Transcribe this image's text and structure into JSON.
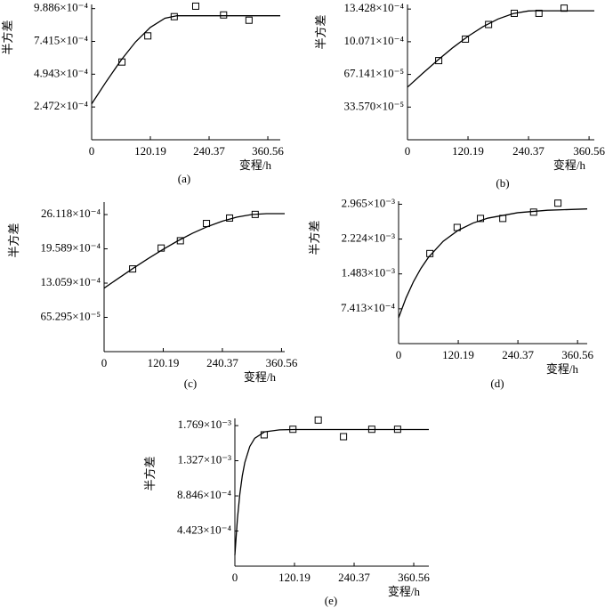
{
  "chart_data": [
    {
      "type": "scatter",
      "caption": "(a)",
      "xlabel": "变程/h",
      "ylabel": "半方差",
      "color": "#000000",
      "xlim": [
        0,
        386
      ],
      "ylim": [
        0,
        0.00102
      ],
      "xticks": [
        0,
        120.19,
        240.37,
        360.56
      ],
      "yticks": [
        {
          "value": 0.0002472,
          "label": "2.472×10⁻⁴"
        },
        {
          "value": 0.0004943,
          "label": "4.943×10⁻⁴"
        },
        {
          "value": 0.0007415,
          "label": "7.415×10⁻⁴"
        },
        {
          "value": 0.0009886,
          "label": "9.886×10⁻⁴"
        }
      ],
      "series": [
        {
          "type": "scatter",
          "x": [
            62,
            115,
            169,
            213,
            270,
            322
          ],
          "values": [
            0.000586,
            0.000783,
            0.000928,
            0.001007,
            0.000941,
            0.000901
          ]
        },
        {
          "type": "line",
          "x": [
            0,
            30,
            60,
            90,
            120,
            150,
            175,
            386
          ],
          "values": [
            0.00027,
            0.000439,
            0.000599,
            0.000738,
            0.000847,
            0.000916,
            0.000935,
            0.000935
          ]
        }
      ]
    },
    {
      "type": "scatter",
      "caption": "(b)",
      "xlabel": "变程/h",
      "ylabel": "半方差",
      "color": "#000000",
      "xlim": [
        0,
        371
      ],
      "ylim": [
        0,
        0.00139
      ],
      "xticks": [
        0,
        120.19,
        240.37,
        360.56
      ],
      "yticks": [
        {
          "value": 0.0003357,
          "label": "33.570×10⁻⁵"
        },
        {
          "value": 0.00067141,
          "label": "67.141×10⁻⁵"
        },
        {
          "value": 0.0010071,
          "label": "10.071×10⁻⁴"
        },
        {
          "value": 0.0013428,
          "label": "13.428×10⁻⁴"
        }
      ],
      "series": [
        {
          "type": "scatter",
          "x": [
            62,
            115,
            161,
            212,
            261,
            311
          ],
          "values": [
            0.000813,
            0.001034,
            0.001184,
            0.001299,
            0.001299,
            0.001352
          ]
        },
        {
          "type": "line",
          "x": [
            0,
            30,
            60,
            90,
            120,
            150,
            180,
            210,
            240,
            250,
            371
          ],
          "values": [
            0.00054,
            0.000681,
            0.000817,
            0.000946,
            0.001062,
            0.001162,
            0.001241,
            0.001296,
            0.001323,
            0.001325,
            0.001325
          ]
        }
      ]
    },
    {
      "type": "scatter",
      "caption": "(c)",
      "xlabel": "变程/h",
      "ylabel": "半方差",
      "color": "#000000",
      "xlim": [
        0,
        367
      ],
      "ylim": [
        0,
        0.00285
      ],
      "xticks": [
        0,
        120.19,
        240.37,
        360.56
      ],
      "yticks": [
        {
          "value": 0.00065295,
          "label": "65.295×10⁻⁵"
        },
        {
          "value": 0.0013059,
          "label": "13.059×10⁻⁴"
        },
        {
          "value": 0.0019589,
          "label": "19.589×10⁻⁴"
        },
        {
          "value": 0.0026118,
          "label": "26.118×10⁻⁴"
        }
      ],
      "series": [
        {
          "type": "scatter",
          "x": [
            58,
            116,
            155,
            208,
            255,
            307
          ],
          "values": [
            0.001576,
            0.001974,
            0.002113,
            0.002442,
            0.002546,
            0.002615
          ]
        },
        {
          "type": "line",
          "x": [
            0,
            30,
            60,
            90,
            120,
            150,
            180,
            210,
            240,
            270,
            300,
            330,
            367
          ],
          "values": [
            0.00121,
            0.001403,
            0.001593,
            0.001776,
            0.00195,
            0.002112,
            0.002257,
            0.002382,
            0.002486,
            0.002564,
            0.002613,
            0.00263,
            0.00263
          ]
        }
      ]
    },
    {
      "type": "scatter",
      "caption": "(d)",
      "xlabel": "变程/h",
      "ylabel": "半方差",
      "color": "#000000",
      "xlim": [
        0,
        380
      ],
      "ylim": [
        0,
        0.00303
      ],
      "xticks": [
        0,
        120.19,
        240.37,
        360.56
      ],
      "yticks": [
        {
          "value": 0.0007413,
          "label": "7.413×10⁻⁴"
        },
        {
          "value": 0.001483,
          "label": "1.483×10⁻³"
        },
        {
          "value": 0.002224,
          "label": "2.224×10⁻³"
        },
        {
          "value": 0.002965,
          "label": "2.965×10⁻³"
        }
      ],
      "series": [
        {
          "type": "scatter",
          "x": [
            63,
            118,
            165,
            210,
            272,
            321
          ],
          "values": [
            0.001916,
            0.002471,
            0.002663,
            0.002663,
            0.002797,
            0.002988
          ]
        },
        {
          "type": "line",
          "x": [
            0,
            15,
            30,
            45,
            60,
            90,
            120,
            150,
            180,
            240,
            300,
            380
          ],
          "values": [
            0.00055,
            0.000972,
            0.001318,
            0.001601,
            0.001833,
            0.002178,
            0.00241,
            0.002565,
            0.002669,
            0.002785,
            0.002837,
            0.002865
          ]
        }
      ]
    },
    {
      "type": "scatter",
      "caption": "(e)",
      "xlabel": "变程/h",
      "ylabel": "半方差",
      "color": "#000000",
      "xlim": [
        0,
        391
      ],
      "ylim": [
        0,
        0.00186
      ],
      "xticks": [
        0,
        120.19,
        240.37,
        360.56
      ],
      "yticks": [
        {
          "value": 0.0004423,
          "label": "4.423×10⁻⁴"
        },
        {
          "value": 0.0008846,
          "label": "8.846×10⁻⁴"
        },
        {
          "value": 0.001327,
          "label": "1.327×10⁻³"
        },
        {
          "value": 0.001769,
          "label": "1.769×10⁻³"
        }
      ],
      "series": [
        {
          "type": "scatter",
          "x": [
            59,
            117,
            168,
            219,
            276,
            328
          ],
          "values": [
            0.001653,
            0.001723,
            0.001839,
            0.00163,
            0.001723,
            0.001723
          ]
        },
        {
          "type": "line",
          "x": [
            0,
            5,
            10,
            15,
            20,
            30,
            40,
            60,
            90,
            120,
            391
          ],
          "values": [
            0.00014,
            0.000588,
            0.000909,
            0.001139,
            0.001304,
            0.001506,
            0.00161,
            0.001691,
            0.001716,
            0.00172,
            0.00172
          ]
        }
      ]
    }
  ]
}
